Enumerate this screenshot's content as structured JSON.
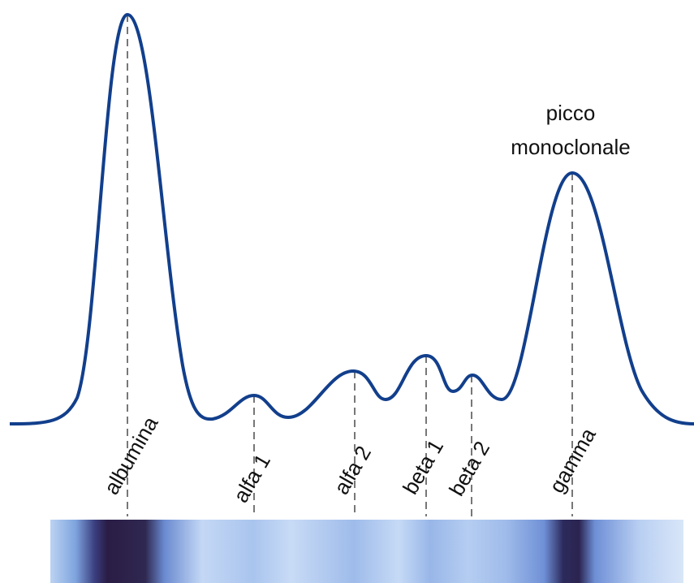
{
  "fractions": [
    "albumina",
    "alfa 1",
    "alfa 2",
    "beta 1",
    "beta 2",
    "gamma"
  ],
  "annotation": {
    "lines": [
      "picco",
      "monoclonale"
    ]
  }
}
